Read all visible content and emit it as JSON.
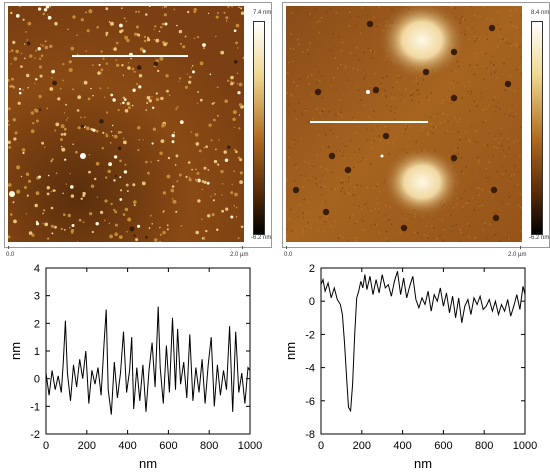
{
  "afm_images": [
    {
      "colorbar": {
        "max_label": "7.4 nm",
        "min_label": "-6.2 nm"
      },
      "scale": {
        "start_label": "0.0",
        "end_label": "2.0 µm"
      },
      "colors": {
        "dark": "#3a1d08",
        "mid": "#8a4a14",
        "light": "#f2e0b0"
      }
    },
    {
      "colorbar": {
        "max_label": "8.4 nm",
        "min_label": "-6.2 nm"
      },
      "scale": {
        "start_label": "0.0",
        "end_label": "2.0 µm"
      },
      "colors": {
        "dark": "#3a1d08",
        "mid": "#9a5a1c",
        "light": "#f6ecc8"
      }
    }
  ],
  "chart_data": [
    {
      "type": "line",
      "xlabel": "nm",
      "ylabel": "nm",
      "xlim": [
        0,
        1000
      ],
      "ylim": [
        -2,
        4
      ],
      "x_ticks": [
        "0",
        "200",
        "400",
        "600",
        "800",
        "1000"
      ],
      "y_ticks": [
        "-2",
        "-1",
        "0",
        "1",
        "2",
        "3",
        "4"
      ],
      "x": [
        0,
        15,
        30,
        45,
        60,
        75,
        85,
        95,
        105,
        120,
        135,
        150,
        165,
        180,
        195,
        210,
        225,
        240,
        255,
        270,
        285,
        295,
        305,
        320,
        335,
        350,
        365,
        380,
        395,
        410,
        420,
        430,
        445,
        460,
        475,
        490,
        505,
        520,
        535,
        550,
        560,
        575,
        590,
        605,
        620,
        635,
        645,
        660,
        675,
        690,
        705,
        720,
        735,
        750,
        765,
        780,
        795,
        810,
        825,
        840,
        855,
        870,
        885,
        900,
        915,
        930,
        945,
        960,
        975,
        990,
        1000
      ],
      "y": [
        0.2,
        -0.6,
        0.3,
        -0.4,
        0.1,
        -0.5,
        0.6,
        2.1,
        0.2,
        -0.8,
        0.5,
        -0.3,
        0.7,
        0.0,
        1.0,
        -0.9,
        0.3,
        -0.2,
        0.4,
        -0.6,
        1.3,
        2.5,
        -0.4,
        -1.3,
        0.6,
        -0.7,
        0.2,
        1.7,
        -0.5,
        0.3,
        1.5,
        -1.1,
        0.4,
        -0.8,
        0.5,
        -1.2,
        0.3,
        1.3,
        -0.3,
        2.6,
        0.4,
        -0.9,
        1.2,
        -0.5,
        2.2,
        -0.4,
        1.8,
        -0.2,
        0.6,
        -0.7,
        1.6,
        -0.8,
        0.4,
        -0.5,
        0.7,
        -0.9,
        0.5,
        1.5,
        -1.0,
        0.5,
        -0.6,
        0.3,
        -0.4,
        1.9,
        -1.2,
        1.7,
        -0.5,
        0.2,
        -0.9,
        0.4,
        0.3
      ],
      "color": "#000000"
    },
    {
      "type": "line",
      "xlabel": "nm",
      "ylabel": "nm",
      "xlim": [
        0,
        1000
      ],
      "ylim": [
        -8,
        2
      ],
      "x_ticks": [
        "0",
        "200",
        "400",
        "600",
        "800",
        "1000"
      ],
      "y_ticks": [
        "-8",
        "-6",
        "-4",
        "-2",
        "0",
        "2"
      ],
      "x": [
        0,
        10,
        20,
        35,
        50,
        65,
        80,
        95,
        105,
        115,
        125,
        135,
        145,
        155,
        165,
        175,
        185,
        195,
        205,
        215,
        225,
        240,
        255,
        270,
        285,
        300,
        315,
        330,
        345,
        360,
        375,
        390,
        405,
        420,
        435,
        450,
        465,
        480,
        495,
        510,
        525,
        540,
        555,
        570,
        585,
        600,
        615,
        630,
        645,
        660,
        675,
        690,
        705,
        720,
        735,
        750,
        765,
        780,
        795,
        810,
        825,
        840,
        855,
        870,
        885,
        900,
        915,
        930,
        945,
        960,
        975,
        990,
        1000
      ],
      "y": [
        1.0,
        1.3,
        0.6,
        1.1,
        0.2,
        0.8,
        0.1,
        -0.2,
        -0.8,
        -2.5,
        -4.5,
        -6.4,
        -6.6,
        -5.0,
        -2.0,
        0.2,
        0.6,
        1.2,
        0.8,
        1.6,
        0.7,
        1.5,
        0.4,
        1.3,
        0.5,
        1.6,
        0.8,
        1.0,
        0.3,
        1.2,
        1.8,
        0.4,
        1.4,
        0.2,
        0.9,
        1.5,
        0.1,
        -0.4,
        0.2,
        -0.2,
        0.6,
        -0.6,
        0.4,
        0.0,
        0.8,
        -0.3,
        0.5,
        -0.7,
        0.3,
        -1.0,
        0.2,
        -1.3,
        -0.3,
        0.1,
        -0.8,
        0.2,
        -0.2,
        0.3,
        -0.5,
        -0.3,
        0.1,
        -0.6,
        0.0,
        -0.8,
        -0.2,
        -0.6,
        0.1,
        -0.9,
        -0.3,
        0.4,
        -0.5,
        0.9,
        0.4
      ],
      "color": "#000000"
    }
  ]
}
